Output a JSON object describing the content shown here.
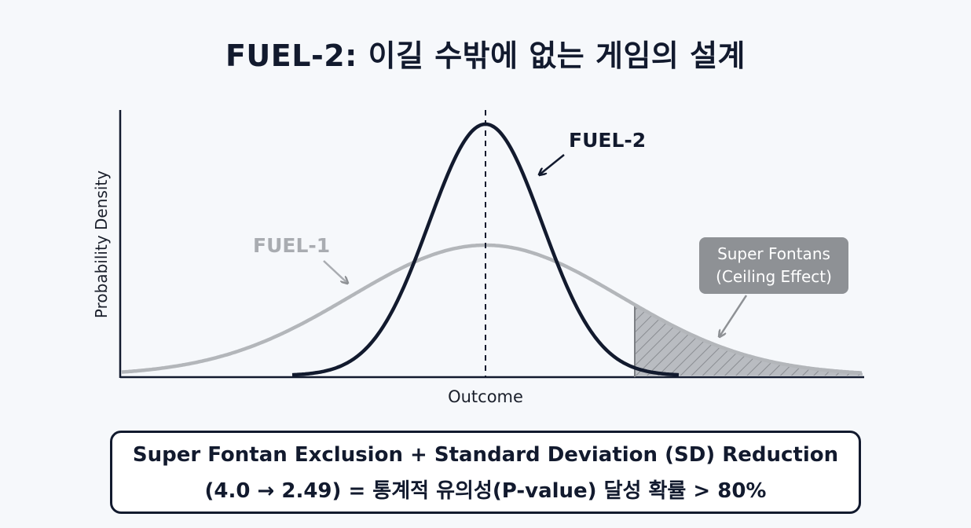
{
  "title": "FUEL-2: 이길 수밖에 없는 게임의 설계",
  "axes": {
    "ylabel": "Probability Density",
    "xlabel": "Outcome"
  },
  "curves": {
    "narrow_label": "FUEL-2",
    "wide_label": "FUEL-1"
  },
  "callout": {
    "line1": "Super Fontans",
    "line2": "(Ceiling Effect)"
  },
  "summary": {
    "line1": "Super Fontan Exclusion + Standard Deviation (SD) Reduction",
    "line2": "(4.0 → 2.49) = 통계적 유의성(P-value) 달성 확률 > 80%"
  },
  "colors": {
    "narrow_curve": "#121a2e",
    "wide_curve": "#b3b6ba",
    "callout_fill": "#8e9195",
    "shading": "#9a9da2"
  }
}
